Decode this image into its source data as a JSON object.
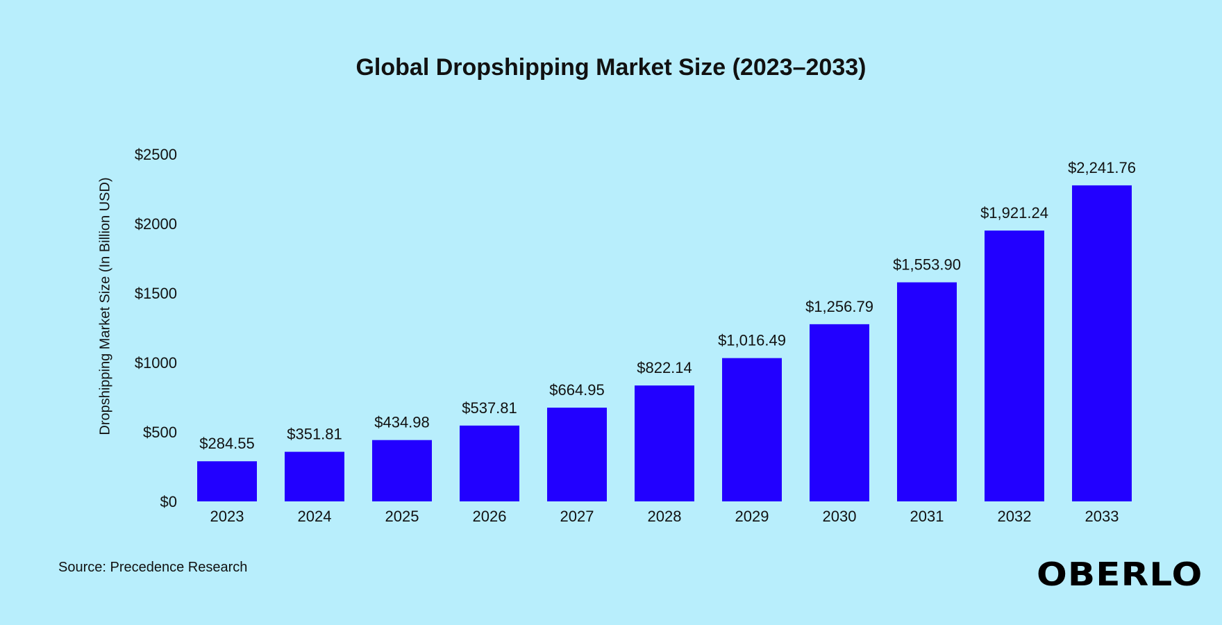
{
  "chart_data": {
    "type": "bar",
    "title": "Global Dropshipping Market Size (2023–2033)",
    "xlabel": "",
    "ylabel": "Dropshipping Market Size (In Billion USD)",
    "ylim": [
      0,
      2500
    ],
    "yticks": [
      "$0",
      "$500",
      "$1000",
      "$1500",
      "$2000",
      "$2500"
    ],
    "ytick_values": [
      0,
      500,
      1000,
      1500,
      2000,
      2500
    ],
    "grid": false,
    "categories": [
      "2023",
      "2024",
      "2025",
      "2026",
      "2027",
      "2028",
      "2029",
      "2030",
      "2031",
      "2032",
      "2033"
    ],
    "values": [
      284.55,
      351.81,
      434.98,
      537.81,
      664.95,
      822.14,
      1016.49,
      1256.79,
      1553.9,
      1921.24,
      2241.76
    ],
    "data_labels": [
      "$284.55",
      "$351.81",
      "$434.98",
      "$537.81",
      "$664.95",
      "$822.14",
      "$1,016.49",
      "$1,256.79",
      "$1,553.90",
      "$1,921.24",
      "$2,241.76"
    ],
    "bar_color": "#2200ff"
  },
  "source": "Source: Precedence Research",
  "logo": "OBERLO",
  "background": "#b8eefc"
}
